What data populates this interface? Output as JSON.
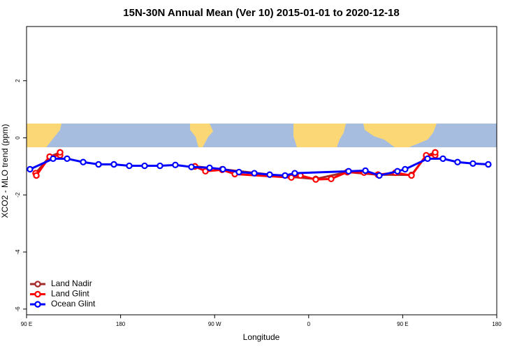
{
  "chart_data": {
    "type": "line",
    "title": "15N-30N Annual Mean (Ver 10)   2015-01-01 to 2020-12-18",
    "x_label": "Longitude",
    "y_label": "XCO2 - MLO trend (ppm)",
    "xlim": [
      90,
      540
    ],
    "ylim": [
      -6.2,
      3.9
    ],
    "xticks": [
      {
        "value": 90,
        "label": "90 E"
      },
      180,
      {
        "value": 270,
        "label": "90 W"
      },
      {
        "value": 360,
        "label": "0"
      },
      {
        "value": 450,
        "label": "90 E"
      },
      {
        "value": 540,
        "label": "180"
      }
    ],
    "yticks": [
      2,
      0,
      -2,
      -4,
      -6
    ],
    "legend": "lower left",
    "series": [
      {
        "name": "Land Nadir",
        "color": "#a52a2a",
        "x": [
          98.7,
          112.1,
          122.1,
          180,
          251.1,
          277.2,
          343.4,
          366.8,
          396.9,
          426.3,
          458.4,
          472.5,
          481.1
        ],
        "values": [
          -1.24,
          -0.66,
          -0.51,
          null,
          -1.0,
          -1.1,
          -1.37,
          -1.44,
          -1.2,
          -1.29,
          -1.3,
          -0.63,
          -0.51
        ]
      },
      {
        "name": "Land Glint",
        "color": "#ff0000",
        "x": [
          98.7,
          99.4,
          112.1,
          122.1,
          122.1,
          180,
          251.1,
          261.2,
          277.2,
          289.3,
          343.4,
          352.1,
          366.8,
          381.5,
          396.9,
          413.0,
          426.3,
          443.0,
          458.4,
          472.5,
          481.1,
          481.1
        ],
        "values": [
          -1.24,
          -1.32,
          -0.66,
          -0.61,
          -0.51,
          null,
          -1.0,
          -1.17,
          -1.12,
          -1.27,
          -1.39,
          -1.32,
          -1.46,
          -1.44,
          -1.2,
          -1.22,
          -1.29,
          -1.22,
          -1.32,
          -0.61,
          -0.61,
          -0.51
        ]
      },
      {
        "name": "Ocean Glint",
        "color": "#0000ff",
        "x": [
          93.3,
          115.4,
          128.8,
          144.2,
          158.9,
          173.6,
          188.3,
          203.0,
          217.7,
          232.4,
          247.8,
          265.2,
          277.9,
          293.3,
          308.0,
          322.7,
          337.4,
          346.7,
          398.2,
          414.3,
          427.6,
          445.0,
          452.3,
          473.8,
          488.5,
          502.5,
          517.2,
          531.9
        ],
        "values": [
          -1.1,
          -0.73,
          -0.73,
          -0.85,
          -0.93,
          -0.93,
          -0.98,
          -0.98,
          -0.98,
          -0.95,
          -1.02,
          -1.05,
          -1.1,
          -1.2,
          -1.24,
          -1.29,
          -1.32,
          -1.24,
          -1.17,
          -1.15,
          -1.32,
          -1.17,
          -1.1,
          -0.73,
          -0.73,
          -0.85,
          -0.9,
          -0.93
        ]
      }
    ]
  }
}
